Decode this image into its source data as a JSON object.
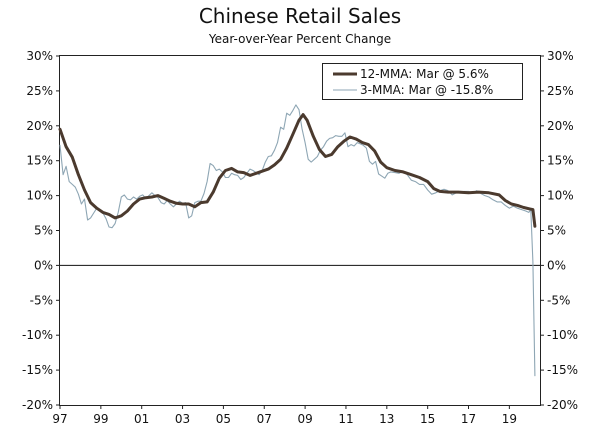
{
  "chart_data": {
    "type": "line",
    "title": "Chinese Retail Sales",
    "subtitle": "Year-over-Year Percent Change",
    "xlabel": "",
    "ylabel": "",
    "xlim": [
      1997,
      2020.5
    ],
    "ylim": [
      -20,
      30
    ],
    "y_ticks": [
      -20,
      -15,
      -10,
      -5,
      0,
      5,
      10,
      15,
      20,
      25,
      30
    ],
    "y_tick_labels": [
      "-20%",
      "-15%",
      "-10%",
      "-5%",
      "0%",
      "5%",
      "10%",
      "15%",
      "20%",
      "25%",
      "30%"
    ],
    "x_ticks": [
      1997,
      1999,
      2001,
      2003,
      2005,
      2007,
      2009,
      2011,
      2013,
      2015,
      2017,
      2019
    ],
    "x_tick_labels": [
      "97",
      "99",
      "01",
      "03",
      "05",
      "07",
      "09",
      "11",
      "13",
      "15",
      "17",
      "19"
    ],
    "grid": false,
    "legend_position": "top-right",
    "series": [
      {
        "name": "12-MMA: Mar @ 5.6%",
        "color": "#4b3a2e",
        "style": "thick",
        "points": [
          [
            1997.0,
            19.5
          ],
          [
            1997.3,
            17.0
          ],
          [
            1997.6,
            15.5
          ],
          [
            1997.9,
            13.0
          ],
          [
            1998.2,
            10.8
          ],
          [
            1998.5,
            9.0
          ],
          [
            1998.8,
            8.2
          ],
          [
            1999.1,
            7.6
          ],
          [
            1999.4,
            7.3
          ],
          [
            1999.7,
            6.8
          ],
          [
            2000.0,
            7.1
          ],
          [
            2000.3,
            7.8
          ],
          [
            2000.6,
            8.8
          ],
          [
            2000.9,
            9.5
          ],
          [
            2001.2,
            9.7
          ],
          [
            2001.5,
            9.8
          ],
          [
            2001.8,
            10.0
          ],
          [
            2002.1,
            9.6
          ],
          [
            2002.4,
            9.2
          ],
          [
            2002.7,
            8.9
          ],
          [
            2003.0,
            8.8
          ],
          [
            2003.3,
            8.8
          ],
          [
            2003.6,
            8.4
          ],
          [
            2003.9,
            9.0
          ],
          [
            2004.2,
            9.1
          ],
          [
            2004.5,
            10.5
          ],
          [
            2004.8,
            12.5
          ],
          [
            2005.1,
            13.6
          ],
          [
            2005.4,
            13.9
          ],
          [
            2005.7,
            13.4
          ],
          [
            2006.0,
            13.3
          ],
          [
            2006.3,
            12.9
          ],
          [
            2006.6,
            13.2
          ],
          [
            2006.9,
            13.5
          ],
          [
            2007.2,
            13.8
          ],
          [
            2007.5,
            14.4
          ],
          [
            2007.8,
            15.2
          ],
          [
            2008.1,
            16.8
          ],
          [
            2008.4,
            18.8
          ],
          [
            2008.7,
            20.8
          ],
          [
            2008.9,
            21.6
          ],
          [
            2009.1,
            20.8
          ],
          [
            2009.4,
            18.5
          ],
          [
            2009.7,
            16.6
          ],
          [
            2010.0,
            15.6
          ],
          [
            2010.3,
            15.9
          ],
          [
            2010.6,
            17.0
          ],
          [
            2010.9,
            17.8
          ],
          [
            2011.2,
            18.4
          ],
          [
            2011.5,
            18.1
          ],
          [
            2011.8,
            17.6
          ],
          [
            2012.1,
            17.3
          ],
          [
            2012.4,
            16.4
          ],
          [
            2012.7,
            14.8
          ],
          [
            2013.0,
            14.0
          ],
          [
            2013.4,
            13.6
          ],
          [
            2013.8,
            13.4
          ],
          [
            2014.2,
            13.0
          ],
          [
            2014.6,
            12.6
          ],
          [
            2015.0,
            12.0
          ],
          [
            2015.3,
            11.0
          ],
          [
            2015.6,
            10.6
          ],
          [
            2016.0,
            10.5
          ],
          [
            2016.5,
            10.5
          ],
          [
            2017.0,
            10.4
          ],
          [
            2017.5,
            10.5
          ],
          [
            2018.0,
            10.4
          ],
          [
            2018.5,
            10.1
          ],
          [
            2018.8,
            9.3
          ],
          [
            2019.1,
            8.8
          ],
          [
            2019.4,
            8.6
          ],
          [
            2019.7,
            8.3
          ],
          [
            2020.0,
            8.1
          ],
          [
            2020.15,
            8.0
          ],
          [
            2020.25,
            5.6
          ]
        ]
      },
      {
        "name": "3-MMA: Mar @ -15.8%",
        "color": "#8ea6b4",
        "style": "thin",
        "points": [
          [
            1997.0,
            17.2
          ],
          [
            1997.15,
            13.0
          ],
          [
            1997.3,
            14.2
          ],
          [
            1997.45,
            12.0
          ],
          [
            1997.6,
            11.6
          ],
          [
            1997.75,
            11.2
          ],
          [
            1997.9,
            10.2
          ],
          [
            1998.05,
            8.8
          ],
          [
            1998.2,
            9.5
          ],
          [
            1998.35,
            6.5
          ],
          [
            1998.5,
            6.8
          ],
          [
            1998.65,
            7.5
          ],
          [
            1998.8,
            8.2
          ],
          [
            1998.95,
            8.0
          ],
          [
            1999.1,
            7.5
          ],
          [
            1999.25,
            6.7
          ],
          [
            1999.4,
            5.5
          ],
          [
            1999.55,
            5.4
          ],
          [
            1999.7,
            6.0
          ],
          [
            1999.85,
            7.6
          ],
          [
            2000.0,
            9.8
          ],
          [
            2000.15,
            10.1
          ],
          [
            2000.3,
            9.5
          ],
          [
            2000.45,
            9.4
          ],
          [
            2000.6,
            9.8
          ],
          [
            2000.75,
            9.5
          ],
          [
            2000.9,
            9.9
          ],
          [
            2001.05,
            10.1
          ],
          [
            2001.2,
            9.6
          ],
          [
            2001.35,
            10.0
          ],
          [
            2001.5,
            10.4
          ],
          [
            2001.65,
            10.0
          ],
          [
            2001.8,
            9.7
          ],
          [
            2001.95,
            9.0
          ],
          [
            2002.1,
            8.8
          ],
          [
            2002.25,
            9.3
          ],
          [
            2002.4,
            8.8
          ],
          [
            2002.55,
            8.4
          ],
          [
            2002.7,
            8.8
          ],
          [
            2002.85,
            9.2
          ],
          [
            2003.0,
            8.9
          ],
          [
            2003.15,
            9.0
          ],
          [
            2003.3,
            6.8
          ],
          [
            2003.45,
            7.1
          ],
          [
            2003.6,
            9.0
          ],
          [
            2003.75,
            9.2
          ],
          [
            2003.9,
            9.2
          ],
          [
            2004.05,
            10.3
          ],
          [
            2004.2,
            12.0
          ],
          [
            2004.35,
            14.6
          ],
          [
            2004.5,
            14.3
          ],
          [
            2004.65,
            13.6
          ],
          [
            2004.8,
            13.8
          ],
          [
            2004.95,
            13.4
          ],
          [
            2005.1,
            12.6
          ],
          [
            2005.25,
            12.6
          ],
          [
            2005.4,
            13.2
          ],
          [
            2005.55,
            13.0
          ],
          [
            2005.7,
            12.9
          ],
          [
            2005.85,
            12.3
          ],
          [
            2006.0,
            12.6
          ],
          [
            2006.15,
            13.2
          ],
          [
            2006.3,
            13.8
          ],
          [
            2006.45,
            13.6
          ],
          [
            2006.6,
            13.3
          ],
          [
            2006.75,
            13.0
          ],
          [
            2006.9,
            13.6
          ],
          [
            2007.05,
            14.8
          ],
          [
            2007.2,
            15.6
          ],
          [
            2007.35,
            15.7
          ],
          [
            2007.5,
            16.5
          ],
          [
            2007.65,
            17.6
          ],
          [
            2007.8,
            19.8
          ],
          [
            2007.95,
            19.5
          ],
          [
            2008.1,
            21.8
          ],
          [
            2008.25,
            21.5
          ],
          [
            2008.4,
            22.2
          ],
          [
            2008.55,
            23.0
          ],
          [
            2008.7,
            22.3
          ],
          [
            2008.85,
            19.6
          ],
          [
            2009.0,
            17.6
          ],
          [
            2009.15,
            15.2
          ],
          [
            2009.3,
            14.8
          ],
          [
            2009.45,
            15.2
          ],
          [
            2009.6,
            15.6
          ],
          [
            2009.75,
            16.5
          ],
          [
            2009.9,
            17.0
          ],
          [
            2010.05,
            17.8
          ],
          [
            2010.2,
            18.2
          ],
          [
            2010.35,
            18.3
          ],
          [
            2010.5,
            18.6
          ],
          [
            2010.65,
            18.5
          ],
          [
            2010.8,
            18.5
          ],
          [
            2010.95,
            19.0
          ],
          [
            2011.1,
            17.0
          ],
          [
            2011.25,
            17.3
          ],
          [
            2011.4,
            17.1
          ],
          [
            2011.55,
            17.6
          ],
          [
            2011.7,
            17.4
          ],
          [
            2011.85,
            17.2
          ],
          [
            2012.0,
            16.8
          ],
          [
            2012.15,
            14.9
          ],
          [
            2012.3,
            14.5
          ],
          [
            2012.45,
            14.9
          ],
          [
            2012.6,
            13.1
          ],
          [
            2012.75,
            12.8
          ],
          [
            2012.9,
            12.5
          ],
          [
            2013.05,
            13.2
          ],
          [
            2013.2,
            13.4
          ],
          [
            2013.4,
            13.3
          ],
          [
            2013.6,
            13.2
          ],
          [
            2013.8,
            13.5
          ],
          [
            2014.0,
            13.0
          ],
          [
            2014.2,
            12.2
          ],
          [
            2014.4,
            12.0
          ],
          [
            2014.6,
            11.6
          ],
          [
            2014.8,
            11.6
          ],
          [
            2015.0,
            10.8
          ],
          [
            2015.2,
            10.2
          ],
          [
            2015.4,
            10.4
          ],
          [
            2015.6,
            10.7
          ],
          [
            2015.8,
            10.9
          ],
          [
            2016.0,
            10.7
          ],
          [
            2016.2,
            10.1
          ],
          [
            2016.4,
            10.4
          ],
          [
            2016.6,
            10.5
          ],
          [
            2016.8,
            10.6
          ],
          [
            2017.0,
            10.6
          ],
          [
            2017.2,
            10.3
          ],
          [
            2017.4,
            10.7
          ],
          [
            2017.6,
            10.3
          ],
          [
            2017.8,
            10.0
          ],
          [
            2018.0,
            9.8
          ],
          [
            2018.2,
            9.4
          ],
          [
            2018.4,
            9.1
          ],
          [
            2018.6,
            9.1
          ],
          [
            2018.8,
            8.6
          ],
          [
            2019.0,
            8.2
          ],
          [
            2019.2,
            8.5
          ],
          [
            2019.4,
            8.2
          ],
          [
            2019.6,
            8.0
          ],
          [
            2019.8,
            7.8
          ],
          [
            2019.95,
            7.6
          ],
          [
            2020.05,
            8.0
          ],
          [
            2020.15,
            0.5
          ],
          [
            2020.25,
            -15.8
          ]
        ]
      }
    ]
  }
}
